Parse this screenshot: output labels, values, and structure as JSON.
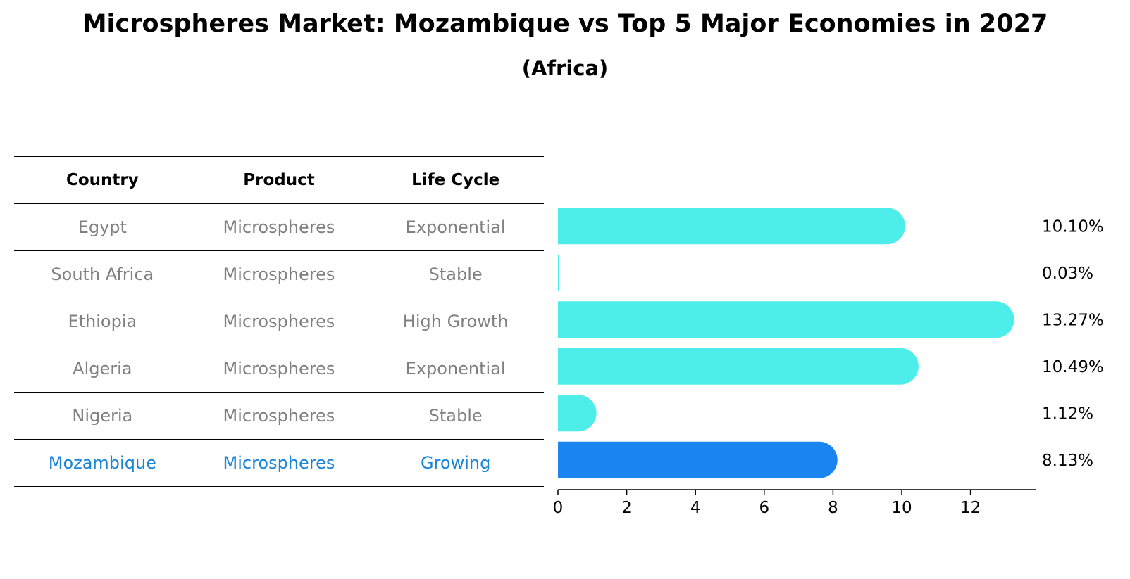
{
  "chart_data": {
    "type": "bar",
    "orientation": "horizontal",
    "title": "Microspheres Market: Mozambique vs Top 5 Major Economies in 2027",
    "subtitle": "(Africa)",
    "table": {
      "headers": [
        "Country",
        "Product",
        "Life Cycle"
      ],
      "rows": [
        {
          "country": "Egypt",
          "product": "Microspheres",
          "life_cycle": "Exponential"
        },
        {
          "country": "South Africa",
          "product": "Microspheres",
          "life_cycle": "Stable"
        },
        {
          "country": "Ethiopia",
          "product": "Microspheres",
          "life_cycle": "High Growth"
        },
        {
          "country": "Algeria",
          "product": "Microspheres",
          "life_cycle": "Exponential"
        },
        {
          "country": "Nigeria",
          "product": "Microspheres",
          "life_cycle": "Stable"
        },
        {
          "country": "Mozambique",
          "product": "Microspheres",
          "life_cycle": "Growing"
        }
      ]
    },
    "categories": [
      "Egypt",
      "South Africa",
      "Ethiopia",
      "Algeria",
      "Nigeria",
      "Mozambique"
    ],
    "values": [
      10.1,
      0.03,
      13.27,
      10.49,
      1.12,
      8.13
    ],
    "value_labels": [
      "10.10%",
      "0.03%",
      "13.27%",
      "10.49%",
      "1.12%",
      "8.13%"
    ],
    "highlight": "Mozambique",
    "xlim": [
      0,
      13.9
    ],
    "xticks": [
      0,
      2,
      4,
      6,
      8,
      10,
      12
    ],
    "colors": {
      "bar": "#4deeea",
      "highlight": "#1a84f0",
      "highlight_text": "#1a84d6",
      "muted_text": "#808080"
    }
  }
}
